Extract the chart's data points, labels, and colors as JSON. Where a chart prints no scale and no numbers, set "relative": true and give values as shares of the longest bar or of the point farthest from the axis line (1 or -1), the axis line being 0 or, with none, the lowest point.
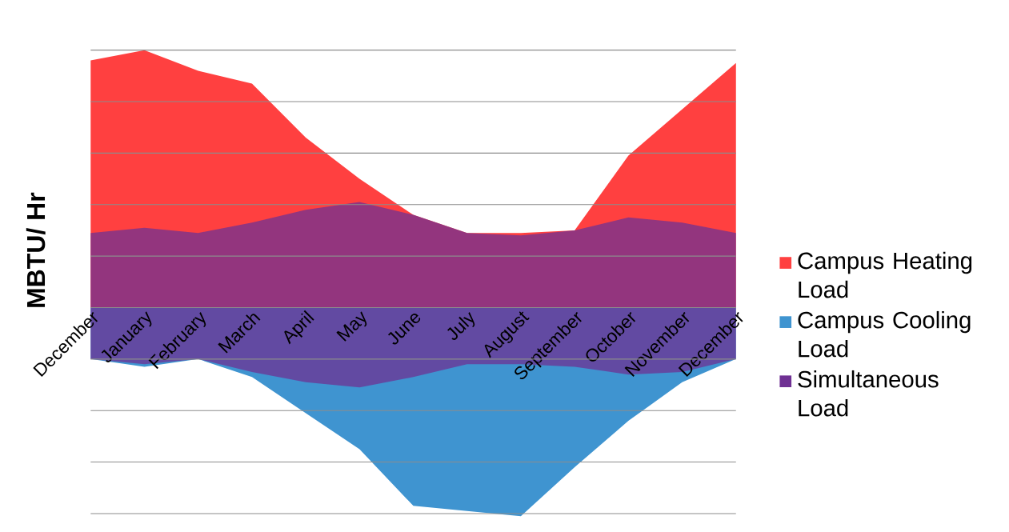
{
  "chart_data": {
    "type": "area",
    "ylabel": "MBTU/ Hr",
    "relative": true,
    "grid": "y",
    "legend": "right",
    "categories": [
      "December",
      "January",
      "February",
      "March",
      "April",
      "May",
      "June",
      "July",
      "August",
      "September",
      "October",
      "November",
      "December"
    ],
    "series": [
      {
        "name": "Campus Heating Load",
        "color": "#ff4040",
        "values": [
          0.96,
          1,
          0.92,
          0.87,
          0.66,
          0.5,
          0.36,
          0.29,
          0.29,
          0.3,
          0.59,
          0.77,
          0.95
        ]
      },
      {
        "name": "Campus Cooling Load",
        "color": "#3f94d0",
        "values": [
          -0.2,
          -0.23,
          -0.2,
          -0.27,
          -0.41,
          -0.55,
          -0.77,
          -0.79,
          -0.81,
          -0.62,
          -0.44,
          -0.29,
          -0.2
        ]
      },
      {
        "name": "Simultaneous Load",
        "color": "#6f3193",
        "values": [
          0.29,
          0.31,
          0.29,
          0.33,
          0.38,
          0.41,
          0.36,
          0.29,
          0.28,
          0.3,
          0.35,
          0.33,
          0.29
        ]
      },
      {
        "color": "#6f3193",
        "values": [
          -0.2,
          -0.22,
          -0.2,
          -0.25,
          -0.29,
          -0.31,
          -0.27,
          -0.22,
          -0.22,
          -0.23,
          -0.26,
          -0.25,
          -0.2
        ]
      }
    ]
  }
}
